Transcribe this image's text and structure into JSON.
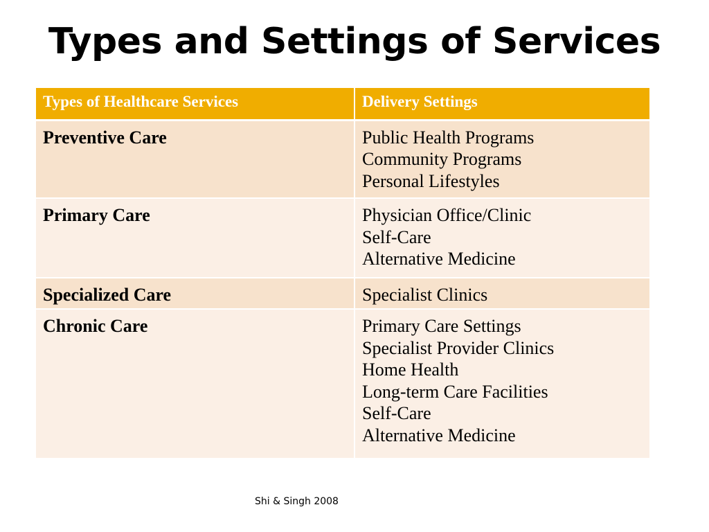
{
  "slide": {
    "title": "Types and Settings of Services",
    "citation": "Shi & Singh 2008"
  },
  "table": {
    "headers": [
      "Types of Healthcare Services",
      "Delivery Settings"
    ],
    "rows": [
      {
        "type": "Preventive Care",
        "settings": [
          "Public Health Programs",
          "Community Programs",
          "Personal Lifestyles"
        ]
      },
      {
        "type": "Primary Care",
        "settings": [
          "Physician Office/Clinic",
          "Self-Care",
          "Alternative Medicine"
        ]
      },
      {
        "type": "Specialized Care",
        "settings": [
          "Specialist Clinics"
        ]
      },
      {
        "type": "Chronic Care",
        "settings": [
          "Primary Care Settings",
          "Specialist Provider Clinics",
          "Home Health",
          "Long-term Care Facilities",
          "Self-Care",
          "Alternative Medicine"
        ]
      }
    ]
  },
  "colors": {
    "header_bg": "#f0ad00",
    "row_band_dark": "#f7e2cc",
    "row_band_light": "#fbefe5"
  }
}
